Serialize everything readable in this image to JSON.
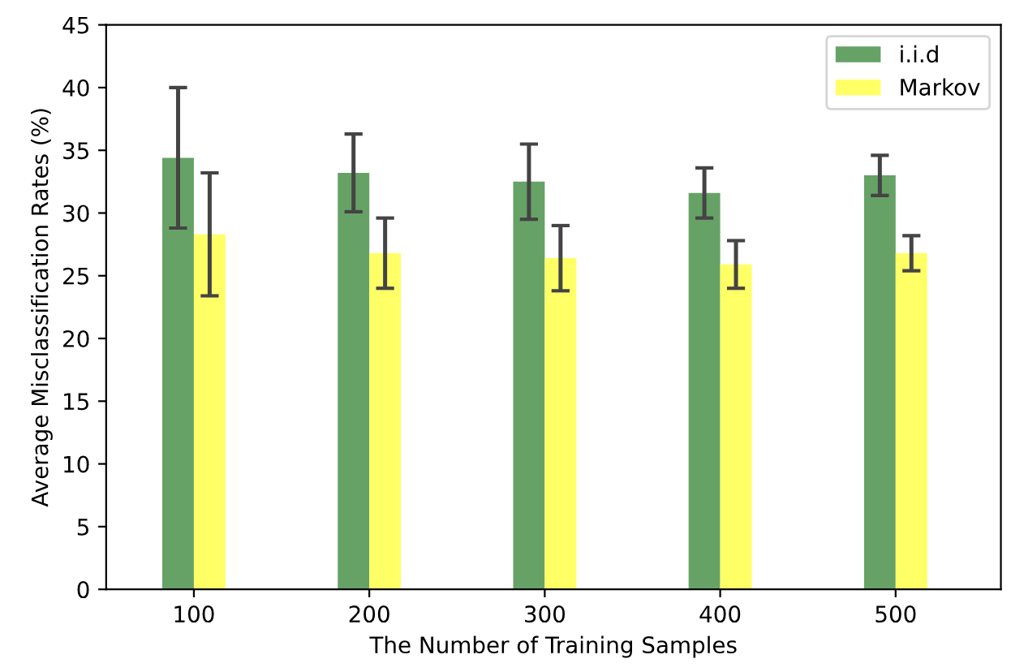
{
  "chart_data": {
    "type": "bar",
    "xlabel": "The Number of Training Samples",
    "ylabel": "Average Misclassification Rates (%)",
    "categories": [
      "100",
      "200",
      "300",
      "400",
      "500"
    ],
    "series": [
      {
        "name": "i.i.d",
        "color": "#66a266",
        "values": [
          34.4,
          33.2,
          32.5,
          31.6,
          33.0
        ],
        "errors": [
          5.6,
          3.1,
          3.0,
          2.0,
          1.6
        ]
      },
      {
        "name": "Markov",
        "color": "#ffff66",
        "values": [
          28.3,
          26.8,
          26.4,
          25.9,
          26.8
        ],
        "errors": [
          4.9,
          2.8,
          2.6,
          1.9,
          1.4
        ]
      }
    ],
    "ylim": [
      0,
      45
    ],
    "yticks": [
      0,
      5,
      10,
      15,
      20,
      25,
      30,
      35,
      40,
      45
    ],
    "grid": false,
    "legend": "top right"
  }
}
